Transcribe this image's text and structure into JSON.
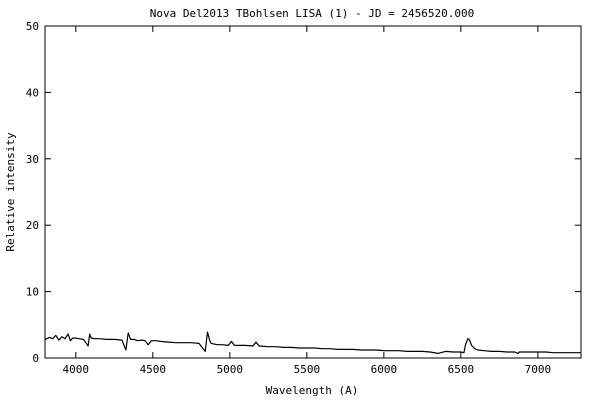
{
  "chart_data": {
    "type": "line",
    "title": "Nova Del2013 TBohlsen LISA (1) - JD = 2456520.000",
    "xlabel": "Wavelength (A)",
    "ylabel": "Relative intensity",
    "xlim": [
      3800,
      7280
    ],
    "ylim": [
      0,
      50
    ],
    "xticks": [
      4000,
      4500,
      5000,
      5500,
      6000,
      6500,
      7000
    ],
    "yticks": [
      0,
      10,
      20,
      30,
      40,
      50
    ],
    "grid": false,
    "legend": "none",
    "line_color": "#000000",
    "series": [
      {
        "x": [
          3800,
          3830,
          3850,
          3870,
          3890,
          3910,
          3930,
          3950,
          3965,
          3980,
          4000,
          4020,
          4050,
          4080,
          4090,
          4100,
          4120,
          4150,
          4200,
          4250,
          4300,
          4325,
          4340,
          4355,
          4380,
          4400,
          4430,
          4450,
          4470,
          4490,
          4520,
          4550,
          4600,
          4650,
          4700,
          4750,
          4800,
          4840,
          4855,
          4870,
          4880,
          4900,
          4920,
          4950,
          4990,
          5010,
          5030,
          5060,
          5100,
          5150,
          5170,
          5190,
          5250,
          5300,
          5350,
          5400,
          5450,
          5500,
          5550,
          5600,
          5650,
          5700,
          5750,
          5800,
          5850,
          5900,
          5950,
          6000,
          6050,
          6100,
          6150,
          6200,
          6250,
          6300,
          6350,
          6400,
          6450,
          6500,
          6520,
          6530,
          6545,
          6555,
          6570,
          6590,
          6610,
          6650,
          6700,
          6750,
          6800,
          6850,
          6870,
          6880,
          6900,
          6950,
          7000,
          7050,
          7100,
          7150,
          7200,
          7250,
          7280
        ],
        "y": [
          2.8,
          3.1,
          2.9,
          3.4,
          2.7,
          3.2,
          2.9,
          3.6,
          2.6,
          3.0,
          3.0,
          2.9,
          2.8,
          1.8,
          3.6,
          3.0,
          2.9,
          2.9,
          2.8,
          2.8,
          2.7,
          1.2,
          3.8,
          2.8,
          2.8,
          2.6,
          2.7,
          2.6,
          2.0,
          2.6,
          2.6,
          2.5,
          2.4,
          2.3,
          2.3,
          2.3,
          2.2,
          1.0,
          3.9,
          2.6,
          2.2,
          2.1,
          2.0,
          2.0,
          1.9,
          2.5,
          1.9,
          1.9,
          1.9,
          1.8,
          2.4,
          1.8,
          1.7,
          1.7,
          1.6,
          1.6,
          1.5,
          1.5,
          1.5,
          1.4,
          1.4,
          1.3,
          1.3,
          1.3,
          1.2,
          1.2,
          1.2,
          1.1,
          1.1,
          1.1,
          1.0,
          1.0,
          1.0,
          0.9,
          0.7,
          1.0,
          0.9,
          0.9,
          0.8,
          2.0,
          2.9,
          2.8,
          1.9,
          1.4,
          1.2,
          1.1,
          1.0,
          1.0,
          0.9,
          0.9,
          0.7,
          0.9,
          0.9,
          0.9,
          0.9,
          0.9,
          0.8,
          0.8,
          0.8,
          0.8,
          0.8
        ]
      }
    ]
  }
}
